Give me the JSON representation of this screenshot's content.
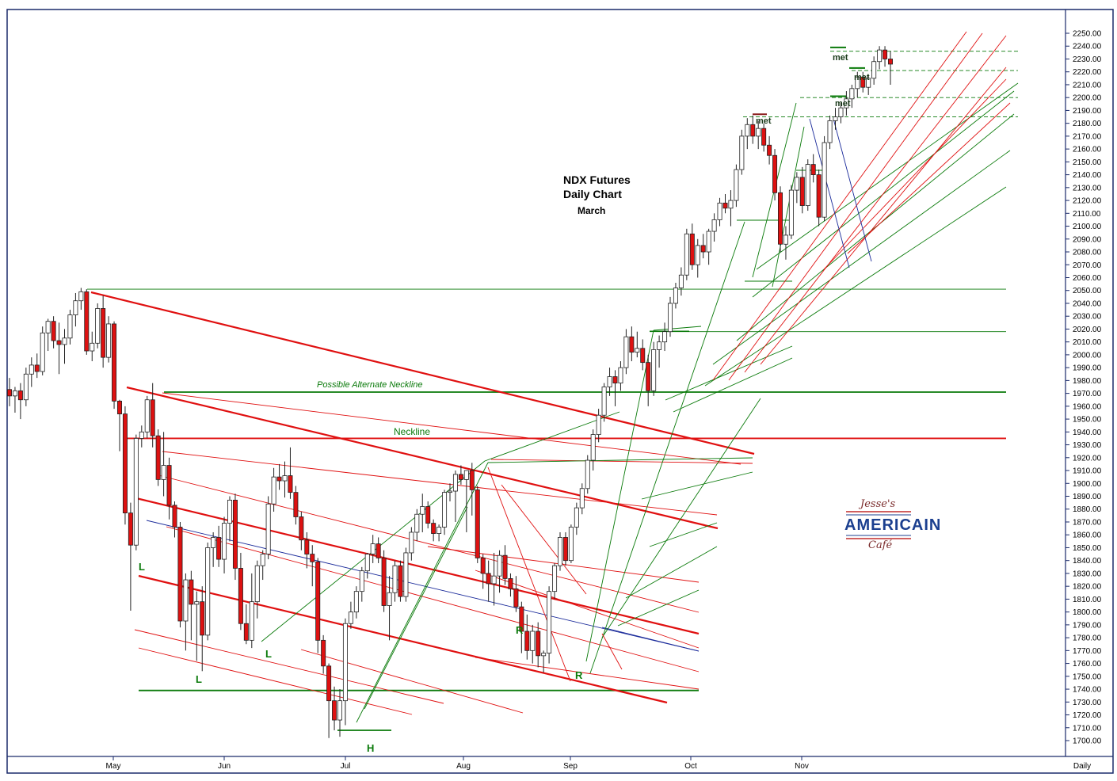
{
  "chart_data": {
    "type": "candlestick",
    "title": "NDX  Futures",
    "subtitle": "Daily Chart",
    "contract": "March",
    "ylim": [
      1692,
      2254
    ],
    "yticks": [
      1700,
      1710,
      1720,
      1730,
      1740,
      1750,
      1760,
      1770,
      1780,
      1790,
      1800,
      1810,
      1820,
      1830,
      1840,
      1850,
      1860,
      1870,
      1880,
      1890,
      1900,
      1910,
      1920,
      1930,
      1940,
      1950,
      1960,
      1970,
      1980,
      1990,
      2000,
      2010,
      2020,
      2030,
      2040,
      2050,
      2060,
      2070,
      2080,
      2090,
      2100,
      2110,
      2120,
      2130,
      2140,
      2150,
      2160,
      2170,
      2180,
      2190,
      2200,
      2210,
      2220,
      2230,
      2240,
      2250
    ],
    "ytick_labels": [
      "1700.00",
      "1710.00",
      "1720.00",
      "1730.00",
      "1740.00",
      "1750.00",
      "1760.00",
      "1770.00",
      "1780.00",
      "1790.00",
      "1800.00",
      "1810.00",
      "1820.00",
      "1830.00",
      "1840.00",
      "1850.00",
      "1860.00",
      "1870.00",
      "1880.00",
      "1890.00",
      "1900.00",
      "1910.00",
      "1920.00",
      "1930.00",
      "1940.00",
      "1950.00",
      "1960.00",
      "1970.00",
      "1980.00",
      "1990.00",
      "2000.00",
      "2010.00",
      "2020.00",
      "2030.00",
      "2040.00",
      "2050.00",
      "2060.00",
      "2070.00",
      "2080.00",
      "2090.00",
      "2100.00",
      "2110.00",
      "2120.00",
      "2130.00",
      "2140.00",
      "2150.00",
      "2160.00",
      "2170.00",
      "2180.00",
      "2190.00",
      "2200.00",
      "2210.00",
      "2220.00",
      "2230.00",
      "2240.00",
      "2250.00"
    ],
    "months": [
      "May",
      "Jun",
      "Jul",
      "Aug",
      "Sep",
      "Oct",
      "Nov"
    ],
    "period_label": "Daily",
    "colors": {
      "up": "#ffffff",
      "down": "#dd1111",
      "outline": "#222222",
      "green": "#0a7a0a",
      "red": "#e01010",
      "blue": "#1a2a9a",
      "frame": "#1a2a6a"
    },
    "levels": [
      {
        "name": "Neckline",
        "value": 1935
      },
      {
        "name": "Possible Alternate Neckline",
        "value": 1971
      },
      {
        "name": "",
        "value": 1739
      },
      {
        "name": "",
        "value": 2051
      },
      {
        "name": "",
        "value": 2018
      },
      {
        "name": "",
        "value": 2185
      },
      {
        "name": "",
        "value": 2200
      },
      {
        "name": "",
        "value": 2221
      },
      {
        "name": "",
        "value": 2236
      }
    ],
    "annotations": {
      "neckline": "Neckline",
      "alt_neckline": "Possible Alternate Neckline",
      "h": "H",
      "l1": "L",
      "l2": "L",
      "l3": "L",
      "r1": "R",
      "r2": "R",
      "met1": "met",
      "met2": "met",
      "met3": "met",
      "met4": "met"
    },
    "series": [
      {
        "o": 1973,
        "h": 1982,
        "l": 1960,
        "c": 1968
      },
      {
        "o": 1968,
        "h": 1975,
        "l": 1955,
        "c": 1972
      },
      {
        "o": 1972,
        "h": 1978,
        "l": 1950,
        "c": 1965
      },
      {
        "o": 1965,
        "h": 1990,
        "l": 1960,
        "c": 1985
      },
      {
        "o": 1985,
        "h": 1998,
        "l": 1975,
        "c": 1992
      },
      {
        "o": 1992,
        "h": 2001,
        "l": 1982,
        "c": 1987
      },
      {
        "o": 1987,
        "h": 2022,
        "l": 1984,
        "c": 2017
      },
      {
        "o": 2017,
        "h": 2028,
        "l": 2003,
        "c": 2026
      },
      {
        "o": 2026,
        "h": 2030,
        "l": 2005,
        "c": 2011
      },
      {
        "o": 2011,
        "h": 2025,
        "l": 1985,
        "c": 2008
      },
      {
        "o": 2008,
        "h": 2020,
        "l": 1993,
        "c": 2013
      },
      {
        "o": 2013,
        "h": 2035,
        "l": 2008,
        "c": 2031
      },
      {
        "o": 2031,
        "h": 2048,
        "l": 2022,
        "c": 2042
      },
      {
        "o": 2042,
        "h": 2052,
        "l": 2035,
        "c": 2049
      },
      {
        "o": 2049,
        "h": 2051,
        "l": 2000,
        "c": 2003
      },
      {
        "o": 2003,
        "h": 2018,
        "l": 1995,
        "c": 2009
      },
      {
        "o": 2009,
        "h": 2040,
        "l": 2005,
        "c": 2036
      },
      {
        "o": 2036,
        "h": 2046,
        "l": 1990,
        "c": 1998
      },
      {
        "o": 1998,
        "h": 2030,
        "l": 1994,
        "c": 2024
      },
      {
        "o": 2024,
        "h": 2026,
        "l": 1958,
        "c": 1964
      },
      {
        "o": 1964,
        "h": 1965,
        "l": 1925,
        "c": 1954
      },
      {
        "o": 1954,
        "h": 1960,
        "l": 1868,
        "c": 1877
      },
      {
        "o": 1877,
        "h": 1885,
        "l": 1801,
        "c": 1852
      },
      {
        "o": 1852,
        "h": 1938,
        "l": 1848,
        "c": 1935
      },
      {
        "o": 1935,
        "h": 1945,
        "l": 1928,
        "c": 1940
      },
      {
        "o": 1940,
        "h": 1968,
        "l": 1935,
        "c": 1965
      },
      {
        "o": 1965,
        "h": 1978,
        "l": 1928,
        "c": 1937
      },
      {
        "o": 1937,
        "h": 1942,
        "l": 1898,
        "c": 1903
      },
      {
        "o": 1903,
        "h": 1940,
        "l": 1890,
        "c": 1914
      },
      {
        "o": 1914,
        "h": 1920,
        "l": 1872,
        "c": 1883
      },
      {
        "o": 1883,
        "h": 1886,
        "l": 1858,
        "c": 1866
      },
      {
        "o": 1866,
        "h": 1870,
        "l": 1788,
        "c": 1793
      },
      {
        "o": 1793,
        "h": 1830,
        "l": 1770,
        "c": 1825
      },
      {
        "o": 1825,
        "h": 1832,
        "l": 1778,
        "c": 1806
      },
      {
        "o": 1806,
        "h": 1816,
        "l": 1762,
        "c": 1808
      },
      {
        "o": 1808,
        "h": 1820,
        "l": 1754,
        "c": 1782
      },
      {
        "o": 1782,
        "h": 1854,
        "l": 1778,
        "c": 1850
      },
      {
        "o": 1850,
        "h": 1862,
        "l": 1835,
        "c": 1858
      },
      {
        "o": 1858,
        "h": 1867,
        "l": 1835,
        "c": 1841
      },
      {
        "o": 1841,
        "h": 1874,
        "l": 1830,
        "c": 1869
      },
      {
        "o": 1869,
        "h": 1890,
        "l": 1855,
        "c": 1887
      },
      {
        "o": 1887,
        "h": 1892,
        "l": 1825,
        "c": 1834
      },
      {
        "o": 1834,
        "h": 1846,
        "l": 1786,
        "c": 1791
      },
      {
        "o": 1791,
        "h": 1806,
        "l": 1775,
        "c": 1778
      },
      {
        "o": 1778,
        "h": 1830,
        "l": 1772,
        "c": 1808
      },
      {
        "o": 1808,
        "h": 1840,
        "l": 1795,
        "c": 1836
      },
      {
        "o": 1836,
        "h": 1848,
        "l": 1825,
        "c": 1845
      },
      {
        "o": 1845,
        "h": 1890,
        "l": 1841,
        "c": 1884
      },
      {
        "o": 1884,
        "h": 1912,
        "l": 1878,
        "c": 1905
      },
      {
        "o": 1905,
        "h": 1915,
        "l": 1895,
        "c": 1902
      },
      {
        "o": 1902,
        "h": 1917,
        "l": 1889,
        "c": 1906
      },
      {
        "o": 1906,
        "h": 1928,
        "l": 1888,
        "c": 1893
      },
      {
        "o": 1893,
        "h": 1898,
        "l": 1868,
        "c": 1874
      },
      {
        "o": 1874,
        "h": 1878,
        "l": 1848,
        "c": 1856
      },
      {
        "o": 1856,
        "h": 1862,
        "l": 1834,
        "c": 1845
      },
      {
        "o": 1845,
        "h": 1852,
        "l": 1820,
        "c": 1839
      },
      {
        "o": 1839,
        "h": 1842,
        "l": 1768,
        "c": 1778
      },
      {
        "o": 1778,
        "h": 1782,
        "l": 1752,
        "c": 1758
      },
      {
        "o": 1758,
        "h": 1760,
        "l": 1702,
        "c": 1731
      },
      {
        "o": 1731,
        "h": 1742,
        "l": 1708,
        "c": 1716
      },
      {
        "o": 1716,
        "h": 1740,
        "l": 1703,
        "c": 1731
      },
      {
        "o": 1731,
        "h": 1795,
        "l": 1712,
        "c": 1791
      },
      {
        "o": 1791,
        "h": 1808,
        "l": 1787,
        "c": 1800
      },
      {
        "o": 1800,
        "h": 1820,
        "l": 1795,
        "c": 1816
      },
      {
        "o": 1816,
        "h": 1835,
        "l": 1808,
        "c": 1832
      },
      {
        "o": 1832,
        "h": 1846,
        "l": 1826,
        "c": 1845
      },
      {
        "o": 1845,
        "h": 1860,
        "l": 1838,
        "c": 1853
      },
      {
        "o": 1853,
        "h": 1858,
        "l": 1838,
        "c": 1842
      },
      {
        "o": 1842,
        "h": 1848,
        "l": 1800,
        "c": 1805
      },
      {
        "o": 1805,
        "h": 1828,
        "l": 1778,
        "c": 1815
      },
      {
        "o": 1815,
        "h": 1840,
        "l": 1808,
        "c": 1836
      },
      {
        "o": 1836,
        "h": 1840,
        "l": 1808,
        "c": 1812
      },
      {
        "o": 1812,
        "h": 1850,
        "l": 1808,
        "c": 1846
      },
      {
        "o": 1846,
        "h": 1866,
        "l": 1840,
        "c": 1862
      },
      {
        "o": 1862,
        "h": 1880,
        "l": 1855,
        "c": 1876
      },
      {
        "o": 1876,
        "h": 1892,
        "l": 1862,
        "c": 1882
      },
      {
        "o": 1882,
        "h": 1886,
        "l": 1865,
        "c": 1869
      },
      {
        "o": 1869,
        "h": 1872,
        "l": 1855,
        "c": 1861
      },
      {
        "o": 1861,
        "h": 1868,
        "l": 1855,
        "c": 1866
      },
      {
        "o": 1866,
        "h": 1895,
        "l": 1860,
        "c": 1893
      },
      {
        "o": 1893,
        "h": 1900,
        "l": 1886,
        "c": 1894
      },
      {
        "o": 1894,
        "h": 1910,
        "l": 1870,
        "c": 1907
      },
      {
        "o": 1907,
        "h": 1914,
        "l": 1899,
        "c": 1903
      },
      {
        "o": 1903,
        "h": 1905,
        "l": 1862,
        "c": 1910
      },
      {
        "o": 1910,
        "h": 1916,
        "l": 1875,
        "c": 1895
      },
      {
        "o": 1895,
        "h": 1898,
        "l": 1838,
        "c": 1842
      },
      {
        "o": 1842,
        "h": 1845,
        "l": 1818,
        "c": 1830
      },
      {
        "o": 1830,
        "h": 1840,
        "l": 1808,
        "c": 1822
      },
      {
        "o": 1822,
        "h": 1846,
        "l": 1805,
        "c": 1828
      },
      {
        "o": 1828,
        "h": 1848,
        "l": 1815,
        "c": 1844
      },
      {
        "o": 1844,
        "h": 1852,
        "l": 1821,
        "c": 1826
      },
      {
        "o": 1826,
        "h": 1830,
        "l": 1812,
        "c": 1818
      },
      {
        "o": 1818,
        "h": 1828,
        "l": 1800,
        "c": 1804
      },
      {
        "o": 1804,
        "h": 1808,
        "l": 1768,
        "c": 1785
      },
      {
        "o": 1785,
        "h": 1798,
        "l": 1763,
        "c": 1770
      },
      {
        "o": 1770,
        "h": 1790,
        "l": 1760,
        "c": 1785
      },
      {
        "o": 1785,
        "h": 1792,
        "l": 1757,
        "c": 1766
      },
      {
        "o": 1766,
        "h": 1770,
        "l": 1753,
        "c": 1768
      },
      {
        "o": 1768,
        "h": 1820,
        "l": 1760,
        "c": 1816
      },
      {
        "o": 1816,
        "h": 1838,
        "l": 1810,
        "c": 1836
      },
      {
        "o": 1836,
        "h": 1862,
        "l": 1832,
        "c": 1858
      },
      {
        "o": 1858,
        "h": 1862,
        "l": 1836,
        "c": 1840
      },
      {
        "o": 1840,
        "h": 1868,
        "l": 1838,
        "c": 1866
      },
      {
        "o": 1866,
        "h": 1885,
        "l": 1860,
        "c": 1881
      },
      {
        "o": 1881,
        "h": 1900,
        "l": 1876,
        "c": 1896
      },
      {
        "o": 1896,
        "h": 1922,
        "l": 1892,
        "c": 1918
      },
      {
        "o": 1918,
        "h": 1942,
        "l": 1910,
        "c": 1938
      },
      {
        "o": 1938,
        "h": 1958,
        "l": 1932,
        "c": 1953
      },
      {
        "o": 1953,
        "h": 1978,
        "l": 1948,
        "c": 1975
      },
      {
        "o": 1975,
        "h": 1990,
        "l": 1968,
        "c": 1983
      },
      {
        "o": 1983,
        "h": 1988,
        "l": 1960,
        "c": 1978
      },
      {
        "o": 1978,
        "h": 1995,
        "l": 1972,
        "c": 1990
      },
      {
        "o": 1990,
        "h": 2020,
        "l": 1985,
        "c": 2014
      },
      {
        "o": 2014,
        "h": 2022,
        "l": 1995,
        "c": 2002
      },
      {
        "o": 2002,
        "h": 2018,
        "l": 1998,
        "c": 2005
      },
      {
        "o": 2005,
        "h": 2012,
        "l": 1988,
        "c": 1994
      },
      {
        "o": 1994,
        "h": 2000,
        "l": 1960,
        "c": 1972
      },
      {
        "o": 1972,
        "h": 2010,
        "l": 1968,
        "c": 2004
      },
      {
        "o": 2004,
        "h": 2015,
        "l": 1990,
        "c": 2010
      },
      {
        "o": 2010,
        "h": 2025,
        "l": 2003,
        "c": 2018
      },
      {
        "o": 2018,
        "h": 2045,
        "l": 2014,
        "c": 2040
      },
      {
        "o": 2040,
        "h": 2056,
        "l": 2036,
        "c": 2052
      },
      {
        "o": 2052,
        "h": 2068,
        "l": 2046,
        "c": 2062
      },
      {
        "o": 2062,
        "h": 2098,
        "l": 2058,
        "c": 2094
      },
      {
        "o": 2094,
        "h": 2102,
        "l": 2066,
        "c": 2070
      },
      {
        "o": 2070,
        "h": 2090,
        "l": 2060,
        "c": 2085
      },
      {
        "o": 2085,
        "h": 2094,
        "l": 2075,
        "c": 2080
      },
      {
        "o": 2080,
        "h": 2098,
        "l": 2070,
        "c": 2096
      },
      {
        "o": 2096,
        "h": 2110,
        "l": 2088,
        "c": 2105
      },
      {
        "o": 2105,
        "h": 2122,
        "l": 2100,
        "c": 2118
      },
      {
        "o": 2118,
        "h": 2125,
        "l": 2110,
        "c": 2114
      },
      {
        "o": 2114,
        "h": 2128,
        "l": 2100,
        "c": 2120
      },
      {
        "o": 2120,
        "h": 2148,
        "l": 2115,
        "c": 2144
      },
      {
        "o": 2144,
        "h": 2175,
        "l": 2140,
        "c": 2170
      },
      {
        "o": 2170,
        "h": 2184,
        "l": 2160,
        "c": 2179
      },
      {
        "o": 2179,
        "h": 2186,
        "l": 2164,
        "c": 2170
      },
      {
        "o": 2170,
        "h": 2182,
        "l": 2160,
        "c": 2176
      },
      {
        "o": 2176,
        "h": 2180,
        "l": 2158,
        "c": 2163
      },
      {
        "o": 2163,
        "h": 2170,
        "l": 2148,
        "c": 2155
      },
      {
        "o": 2155,
        "h": 2160,
        "l": 2120,
        "c": 2126
      },
      {
        "o": 2126,
        "h": 2131,
        "l": 2080,
        "c": 2086
      },
      {
        "o": 2086,
        "h": 2100,
        "l": 2074,
        "c": 2093
      },
      {
        "o": 2093,
        "h": 2132,
        "l": 2090,
        "c": 2128
      },
      {
        "o": 2128,
        "h": 2142,
        "l": 2118,
        "c": 2138
      },
      {
        "o": 2138,
        "h": 2146,
        "l": 2110,
        "c": 2116
      },
      {
        "o": 2116,
        "h": 2152,
        "l": 2112,
        "c": 2148
      },
      {
        "o": 2148,
        "h": 2156,
        "l": 2134,
        "c": 2140
      },
      {
        "o": 2140,
        "h": 2144,
        "l": 2100,
        "c": 2107
      },
      {
        "o": 2107,
        "h": 2170,
        "l": 2104,
        "c": 2165
      },
      {
        "o": 2165,
        "h": 2186,
        "l": 2160,
        "c": 2182
      },
      {
        "o": 2182,
        "h": 2192,
        "l": 2175,
        "c": 2185
      },
      {
        "o": 2185,
        "h": 2196,
        "l": 2180,
        "c": 2192
      },
      {
        "o": 2192,
        "h": 2205,
        "l": 2186,
        "c": 2199
      },
      {
        "o": 2199,
        "h": 2210,
        "l": 2192,
        "c": 2207
      },
      {
        "o": 2207,
        "h": 2220,
        "l": 2200,
        "c": 2216
      },
      {
        "o": 2216,
        "h": 2220,
        "l": 2204,
        "c": 2208
      },
      {
        "o": 2208,
        "h": 2218,
        "l": 2202,
        "c": 2215
      },
      {
        "o": 2215,
        "h": 2232,
        "l": 2210,
        "c": 2228
      },
      {
        "o": 2228,
        "h": 2240,
        "l": 2222,
        "c": 2237
      },
      {
        "o": 2237,
        "h": 2240,
        "l": 2224,
        "c": 2230
      },
      {
        "o": 2230,
        "h": 2236,
        "l": 2210,
        "c": 2226
      }
    ]
  },
  "logo": {
    "top": "Jesse's",
    "middle": "AMERICAIN",
    "bottom": "Café"
  }
}
